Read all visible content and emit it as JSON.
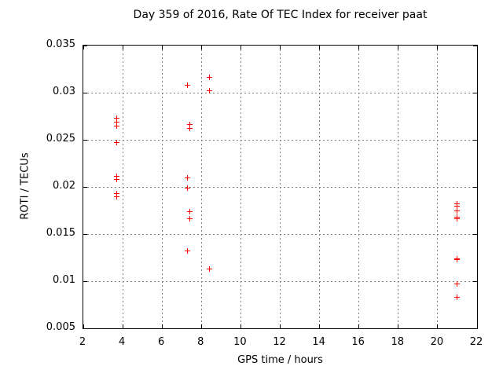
{
  "chart_data": {
    "type": "scatter",
    "title": "Day 359 of 2016, Rate Of TEC Index for receiver paat",
    "xlabel": "GPS time / hours",
    "ylabel": "ROTI / TECUs",
    "xlim": [
      2,
      22
    ],
    "ylim": [
      0.005,
      0.035
    ],
    "xticks": {
      "values": [
        2,
        4,
        6,
        8,
        10,
        12,
        14,
        16,
        18,
        20,
        22
      ],
      "labels": [
        "2",
        "4",
        "6",
        "8",
        "10",
        "12",
        "14",
        "16",
        "18",
        "20",
        "22"
      ]
    },
    "yticks": {
      "values": [
        0.005,
        0.01,
        0.015,
        0.02,
        0.025,
        0.03,
        0.035
      ],
      "labels": [
        "0.005",
        "0.01",
        "0.015",
        "0.02",
        "0.025",
        "0.03",
        "0.035"
      ]
    },
    "grid": true,
    "legend": "none",
    "grid_color": "#808080",
    "axis_color": "#000000",
    "marker": {
      "shape": "plus",
      "color": "#ff0000",
      "size": 7
    },
    "series": [
      {
        "name": "ROTI",
        "points": [
          [
            3.7,
            0.0273
          ],
          [
            3.7,
            0.0269
          ],
          [
            3.7,
            0.0265
          ],
          [
            3.7,
            0.0247
          ],
          [
            3.7,
            0.0211
          ],
          [
            3.7,
            0.0208
          ],
          [
            3.7,
            0.0193
          ],
          [
            3.7,
            0.019
          ],
          [
            7.3,
            0.0308
          ],
          [
            7.4,
            0.0266
          ],
          [
            7.4,
            0.0262
          ],
          [
            7.3,
            0.021
          ],
          [
            7.3,
            0.0199
          ],
          [
            7.4,
            0.0174
          ],
          [
            7.4,
            0.0166
          ],
          [
            7.3,
            0.0132
          ],
          [
            8.4,
            0.0316
          ],
          [
            8.4,
            0.0302
          ],
          [
            8.4,
            0.0113
          ],
          [
            21.0,
            0.0182
          ],
          [
            21.0,
            0.018
          ],
          [
            21.0,
            0.0175
          ],
          [
            21.0,
            0.0168
          ],
          [
            21.0,
            0.0166
          ],
          [
            21.0,
            0.0124
          ],
          [
            21.0,
            0.0123
          ],
          [
            21.0,
            0.0097
          ],
          [
            21.0,
            0.0083
          ]
        ]
      }
    ]
  }
}
